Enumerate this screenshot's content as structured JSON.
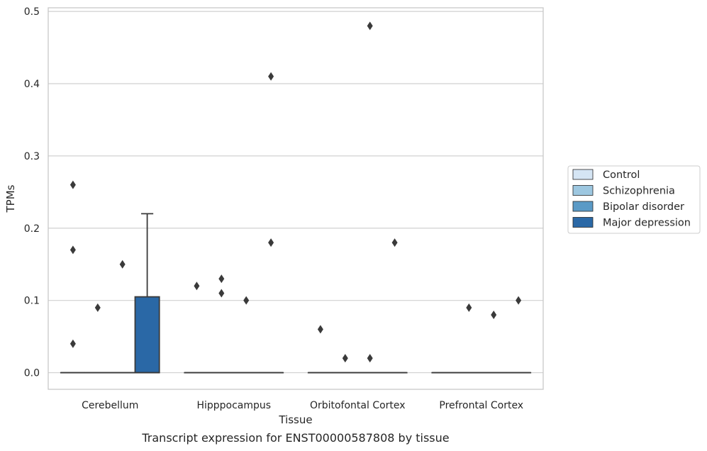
{
  "chart_data": {
    "type": "box",
    "title": "",
    "caption": "Transcript expression for ENST00000587808 by tissue",
    "xlabel": "Tissue",
    "ylabel": "TPMs",
    "ylim": [
      -0.023,
      0.505
    ],
    "yticks": [
      0.0,
      0.1,
      0.2,
      0.3,
      0.4,
      0.5
    ],
    "ytick_labels": [
      "0.0",
      "0.1",
      "0.2",
      "0.3",
      "0.4",
      "0.5"
    ],
    "grid": "horizontal",
    "legend_position": "right",
    "categories": [
      "Cerebellum",
      "Hipppocampus",
      "Orbitofontal Cortex",
      "Prefrontal Cortex"
    ],
    "series": [
      {
        "name": "Control",
        "color": "#d5e5f4",
        "boxes": [
          {
            "q1": 0,
            "median": 0,
            "q3": 0,
            "whisker_low": 0,
            "whisker_high": 0,
            "outliers": [
              0.26,
              0.17,
              0.04
            ]
          },
          {
            "q1": 0,
            "median": 0,
            "q3": 0,
            "whisker_low": 0,
            "whisker_high": 0,
            "outliers": [
              0.12
            ]
          },
          {
            "q1": 0,
            "median": 0,
            "q3": 0,
            "whisker_low": 0,
            "whisker_high": 0,
            "outliers": [
              0.06
            ]
          },
          {
            "q1": 0,
            "median": 0,
            "q3": 0,
            "whisker_low": 0,
            "whisker_high": 0,
            "outliers": []
          }
        ]
      },
      {
        "name": "Schizophrenia",
        "color": "#9dc7e0",
        "boxes": [
          {
            "q1": 0,
            "median": 0,
            "q3": 0,
            "whisker_low": 0,
            "whisker_high": 0,
            "outliers": [
              0.09
            ]
          },
          {
            "q1": 0,
            "median": 0,
            "q3": 0,
            "whisker_low": 0,
            "whisker_high": 0,
            "outliers": [
              0.13,
              0.11
            ]
          },
          {
            "q1": 0,
            "median": 0,
            "q3": 0,
            "whisker_low": 0,
            "whisker_high": 0,
            "outliers": [
              0.02
            ]
          },
          {
            "q1": 0,
            "median": 0,
            "q3": 0,
            "whisker_low": 0,
            "whisker_high": 0,
            "outliers": [
              0.09
            ]
          }
        ]
      },
      {
        "name": "Bipolar disorder",
        "color": "#5a9ac6",
        "boxes": [
          {
            "q1": 0,
            "median": 0,
            "q3": 0,
            "whisker_low": 0,
            "whisker_high": 0,
            "outliers": [
              0.15
            ]
          },
          {
            "q1": 0,
            "median": 0,
            "q3": 0,
            "whisker_low": 0,
            "whisker_high": 0,
            "outliers": [
              0.1
            ]
          },
          {
            "q1": 0,
            "median": 0,
            "q3": 0,
            "whisker_low": 0,
            "whisker_high": 0,
            "outliers": [
              0.48,
              0.02
            ]
          },
          {
            "q1": 0,
            "median": 0,
            "q3": 0,
            "whisker_low": 0,
            "whisker_high": 0,
            "outliers": [
              0.08
            ]
          }
        ]
      },
      {
        "name": "Major depression",
        "color": "#2a68a6",
        "boxes": [
          {
            "q1": 0,
            "median": 0,
            "q3": 0.105,
            "whisker_low": 0,
            "whisker_high": 0.22,
            "outliers": []
          },
          {
            "q1": 0,
            "median": 0,
            "q3": 0,
            "whisker_low": 0,
            "whisker_high": 0,
            "outliers": [
              0.41,
              0.18
            ]
          },
          {
            "q1": 0,
            "median": 0,
            "q3": 0,
            "whisker_low": 0,
            "whisker_high": 0,
            "outliers": [
              0.18
            ]
          },
          {
            "q1": 0,
            "median": 0,
            "q3": 0,
            "whisker_low": 0,
            "whisker_high": 0,
            "outliers": [
              0.1
            ]
          }
        ]
      }
    ]
  },
  "colors": {
    "grid": "#d0d0d0",
    "frame": "#c8c8c8",
    "line": "#3a3a3a",
    "text": "#262626"
  }
}
